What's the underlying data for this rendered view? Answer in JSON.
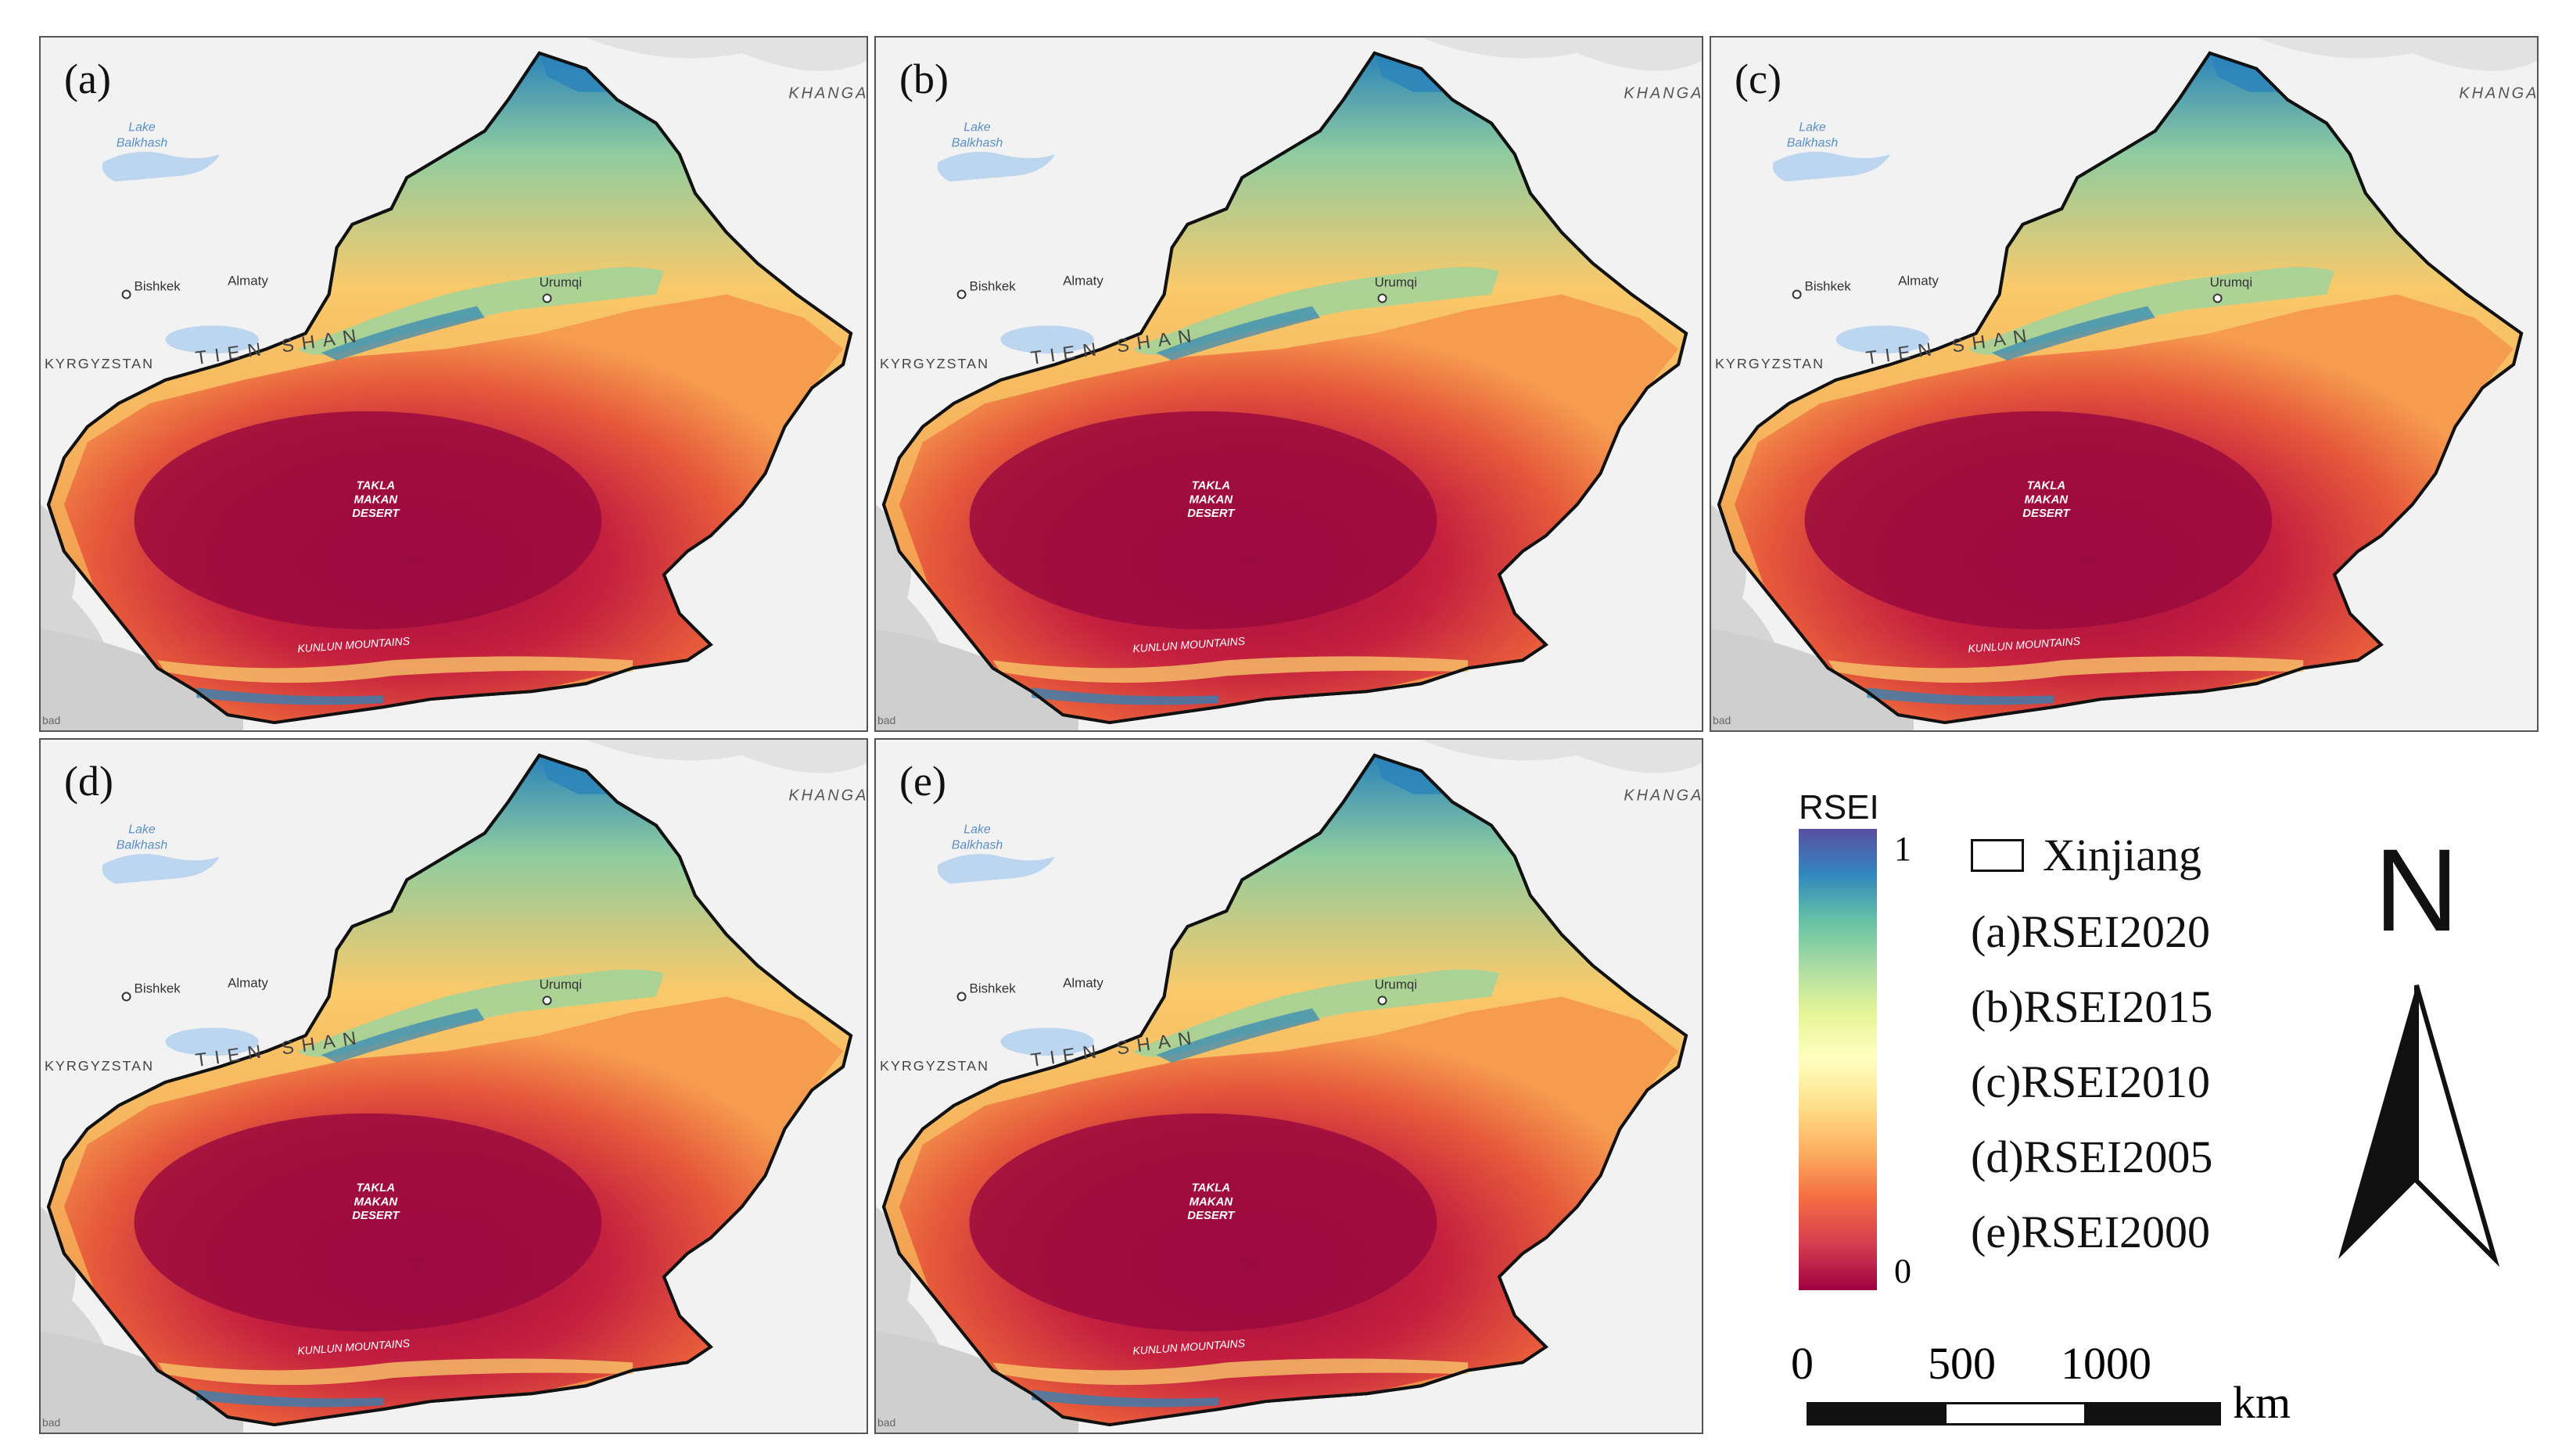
{
  "panels": [
    {
      "label": "(a)"
    },
    {
      "label": "(b)"
    },
    {
      "label": "(c)"
    },
    {
      "label": "(d)"
    },
    {
      "label": "(e)"
    }
  ],
  "map_labels": {
    "lake": [
      "Lake",
      "Balkhash"
    ],
    "bishkek": "Bishkek",
    "almaty": "Almaty",
    "urumqi": "Urumqi",
    "kyrgyzstan": "KYRGYZSTAN",
    "tien_shan": "TIEN SHAN",
    "khanga": "KHANGA",
    "takla": [
      "TAKLA",
      "MAKAN",
      "DESERT"
    ],
    "kunlun": "KUNLUN MOUNTAINS",
    "bad": "bad"
  },
  "legend": {
    "colorbar_title": "RSEI",
    "colorbar_max": "1",
    "colorbar_min": "0",
    "colors": [
      "#5a4fa2",
      "#3288bd",
      "#66c2a5",
      "#abdda4",
      "#e6f598",
      "#ffffbf",
      "#fee08b",
      "#fdae61",
      "#f46d43",
      "#d53e4f",
      "#9e0142"
    ],
    "boundary_label": "Xinjiang",
    "items": [
      "(a)RSEI2020",
      "(b)RSEI2015",
      "(c)RSEI2010",
      "(d)RSEI2005",
      "(e)RSEI2000"
    ]
  },
  "scale_bar": {
    "labels": [
      "0",
      "500",
      "1000"
    ],
    "unit": "km"
  },
  "north_arrow": {
    "label": "N"
  }
}
